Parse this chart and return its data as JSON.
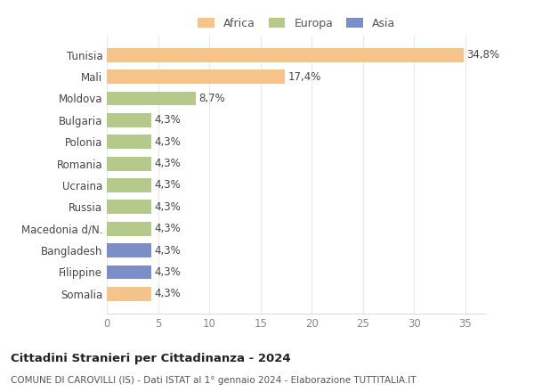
{
  "categories": [
    "Tunisia",
    "Mali",
    "Moldova",
    "Bulgaria",
    "Polonia",
    "Romania",
    "Ucraina",
    "Russia",
    "Macedonia d/N.",
    "Bangladesh",
    "Filippine",
    "Somalia"
  ],
  "values": [
    34.8,
    17.4,
    8.7,
    4.3,
    4.3,
    4.3,
    4.3,
    4.3,
    4.3,
    4.3,
    4.3,
    4.3
  ],
  "labels": [
    "34,8%",
    "17,4%",
    "8,7%",
    "4,3%",
    "4,3%",
    "4,3%",
    "4,3%",
    "4,3%",
    "4,3%",
    "4,3%",
    "4,3%",
    "4,3%"
  ],
  "colors": [
    "#f5c48a",
    "#f5c48a",
    "#b5c98a",
    "#b5c98a",
    "#b5c98a",
    "#b5c98a",
    "#b5c98a",
    "#b5c98a",
    "#b5c98a",
    "#7b8ec8",
    "#7b8ec8",
    "#f5c48a"
  ],
  "legend_labels": [
    "Africa",
    "Europa",
    "Asia"
  ],
  "legend_colors": [
    "#f5c48a",
    "#b5c98a",
    "#7b8ec8"
  ],
  "title1": "Cittadini Stranieri per Cittadinanza - 2024",
  "title2": "COMUNE DI CAROVILLI (IS) - Dati ISTAT al 1° gennaio 2024 - Elaborazione TUTTITALIA.IT",
  "xlim": [
    0,
    37
  ],
  "xticks": [
    0,
    5,
    10,
    15,
    20,
    25,
    30,
    35
  ],
  "background_color": "#ffffff",
  "grid_color": "#e8e8e8",
  "bar_height": 0.65,
  "label_fontsize": 8.5,
  "ytick_fontsize": 8.5,
  "xtick_fontsize": 8.5
}
